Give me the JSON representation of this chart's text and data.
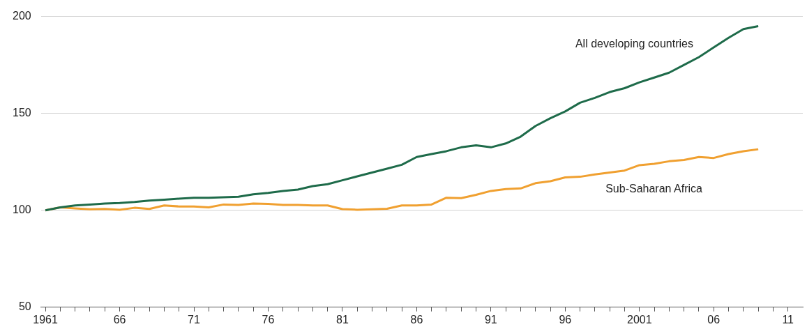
{
  "chart_data": {
    "type": "line",
    "x": [
      1961,
      1962,
      1963,
      1964,
      1965,
      1966,
      1967,
      1968,
      1969,
      1970,
      1971,
      1972,
      1973,
      1974,
      1975,
      1976,
      1977,
      1978,
      1979,
      1980,
      1981,
      1982,
      1983,
      1984,
      1985,
      1986,
      1987,
      1988,
      1989,
      1990,
      1991,
      1992,
      1993,
      1994,
      1995,
      1996,
      1997,
      1998,
      1999,
      2000,
      2001,
      2002,
      2003,
      2004,
      2005,
      2006,
      2007,
      2008,
      2009
    ],
    "series": [
      {
        "name": "All developing countries",
        "color": "#1e6b4a",
        "values": [
          100,
          101.5,
          102.5,
          103,
          103.5,
          103.8,
          104.3,
          105,
          105.5,
          106,
          106.5,
          106.5,
          106.7,
          107,
          108.3,
          109,
          110,
          110.7,
          112.5,
          113.5,
          115.5,
          117.5,
          119.5,
          121.5,
          123.5,
          127.5,
          129,
          130.5,
          132.5,
          133.5,
          132.5,
          134.5,
          138,
          143.5,
          147.5,
          151,
          155.5,
          158,
          161,
          163,
          166,
          168.5,
          171,
          175,
          179,
          184,
          189,
          193.5,
          195
        ]
      },
      {
        "name": "Sub-Saharan Africa",
        "color": "#f0a030",
        "values": [
          100,
          101.5,
          101,
          100.5,
          100.7,
          100.3,
          101.3,
          100.7,
          102.5,
          102,
          102,
          101.5,
          103,
          102.8,
          103.5,
          103.3,
          102.8,
          102.8,
          102.5,
          102.5,
          100.6,
          100.3,
          100.5,
          100.8,
          102.5,
          102.5,
          103,
          106.5,
          106.3,
          108,
          110,
          111,
          111.3,
          114,
          115,
          117,
          117.3,
          118.5,
          119.5,
          120.5,
          123.3,
          124,
          125.3,
          126,
          127.5,
          127,
          129,
          130.5,
          131.5
        ]
      }
    ],
    "xlim": [
      1960.7,
      2012
    ],
    "xticks": [
      1961,
      {
        "value": 1962,
        "label": null
      },
      {
        "value": 1963,
        "label": null
      },
      {
        "value": 1964,
        "label": null
      },
      {
        "value": 1965,
        "label": null
      },
      {
        "value": 1966,
        "label": "66"
      },
      {
        "value": 1967,
        "label": null
      },
      {
        "value": 1968,
        "label": null
      },
      {
        "value": 1969,
        "label": null
      },
      {
        "value": 1970,
        "label": null
      },
      {
        "value": 1971,
        "label": "71"
      },
      {
        "value": 1972,
        "label": null
      },
      {
        "value": 1973,
        "label": null
      },
      {
        "value": 1974,
        "label": null
      },
      {
        "value": 1975,
        "label": null
      },
      {
        "value": 1976,
        "label": "76"
      },
      {
        "value": 1977,
        "label": null
      },
      {
        "value": 1978,
        "label": null
      },
      {
        "value": 1979,
        "label": null
      },
      {
        "value": 1980,
        "label": null
      },
      {
        "value": 1981,
        "label": "81"
      },
      {
        "value": 1982,
        "label": null
      },
      {
        "value": 1983,
        "label": null
      },
      {
        "value": 1984,
        "label": null
      },
      {
        "value": 1985,
        "label": null
      },
      {
        "value": 1986,
        "label": "86"
      },
      {
        "value": 1987,
        "label": null
      },
      {
        "value": 1988,
        "label": null
      },
      {
        "value": 1989,
        "label": null
      },
      {
        "value": 1990,
        "label": null
      },
      {
        "value": 1991,
        "label": "91"
      },
      {
        "value": 1992,
        "label": null
      },
      {
        "value": 1993,
        "label": null
      },
      {
        "value": 1994,
        "label": null
      },
      {
        "value": 1995,
        "label": null
      },
      {
        "value": 1996,
        "label": "96"
      },
      {
        "value": 1997,
        "label": null
      },
      {
        "value": 1998,
        "label": null
      },
      {
        "value": 1999,
        "label": null
      },
      {
        "value": 2000,
        "label": null
      },
      2001,
      {
        "value": 2002,
        "label": null
      },
      {
        "value": 2003,
        "label": null
      },
      {
        "value": 2004,
        "label": null
      },
      {
        "value": 2005,
        "label": null
      },
      {
        "value": 2006,
        "label": "06"
      },
      {
        "value": 2007,
        "label": null
      },
      {
        "value": 2008,
        "label": null
      },
      {
        "value": 2009,
        "label": null
      },
      {
        "value": 2010,
        "label": null
      },
      {
        "value": 2011,
        "label": "11"
      }
    ],
    "ylim": [
      50,
      200
    ],
    "yticks": [
      50,
      100,
      150,
      200
    ],
    "grid": "y",
    "legend": false,
    "marker": "none",
    "line_style": "solid"
  }
}
